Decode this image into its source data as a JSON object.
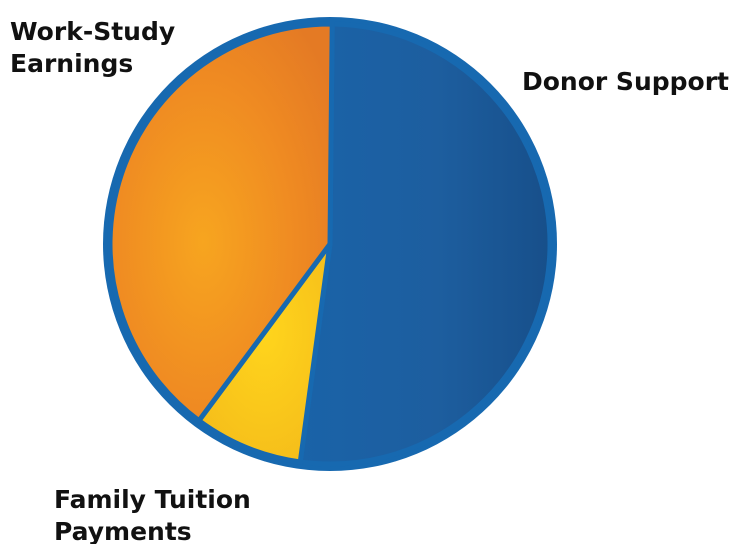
{
  "chart_data": {
    "type": "pie",
    "slices": [
      {
        "label_lines": [
          "Donor Support"
        ],
        "value": 52,
        "color": "#1a5fa3"
      },
      {
        "label_lines": [
          "Family Tuition",
          "Payments"
        ],
        "value": 8,
        "color": "#f5c518"
      },
      {
        "label_lines": [
          "Work-Study",
          "Earnings"
        ],
        "value": 40,
        "color": "#ef8a22"
      }
    ],
    "legend": "none",
    "outline_color": "#1769b0"
  }
}
